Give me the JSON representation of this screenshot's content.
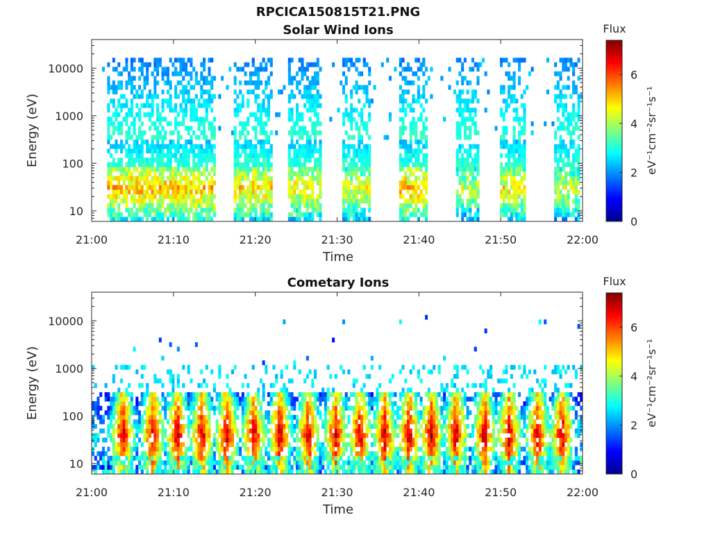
{
  "figure": {
    "title": "RPCICA150815T21.PNG"
  },
  "colors": {
    "colormap": "jet",
    "axis": "#262626",
    "background": "#ffffff"
  },
  "chart_data": [
    {
      "type": "heatmap",
      "title": "Solar Wind Ions",
      "xlabel": "Time",
      "ylabel": "Energy (eV)",
      "xticks": [
        "21:00",
        "21:10",
        "21:20",
        "21:30",
        "21:40",
        "21:50",
        "22:00"
      ],
      "xlim_minutes": [
        0,
        60
      ],
      "yscale": "log",
      "ylim": [
        6,
        40000
      ],
      "yticks": [
        10,
        100,
        1000,
        10000
      ],
      "ytick_labels": [
        "10",
        "100",
        "1000",
        "10000"
      ],
      "colorbar": {
        "label": "Flux",
        "units": "eV⁻¹cm⁻²sr⁻¹s⁻¹",
        "range": [
          0,
          7.4
        ],
        "ticks": [
          0,
          2,
          4,
          6
        ],
        "tick_labels": [
          "0",
          "2",
          "4",
          "6"
        ]
      },
      "time_bands": [
        {
          "start_min": 1.8,
          "end_min": 15.0,
          "peak_energy_eV": 30,
          "peak_flux": 5.8
        },
        {
          "start_min": 17.5,
          "end_min": 22.0,
          "peak_energy_eV": 30,
          "peak_flux": 5.6
        },
        {
          "start_min": 24.0,
          "end_min": 28.0,
          "peak_energy_eV": 30,
          "peak_flux": 5.4
        },
        {
          "start_min": 30.5,
          "end_min": 34.0,
          "peak_energy_eV": 30,
          "peak_flux": 5.2
        },
        {
          "start_min": 37.5,
          "end_min": 41.0,
          "peak_energy_eV": 30,
          "peak_flux": 5.8
        },
        {
          "start_min": 44.5,
          "end_min": 47.5,
          "peak_energy_eV": 30,
          "peak_flux": 5.0
        },
        {
          "start_min": 50.0,
          "end_min": 53.0,
          "peak_energy_eV": 30,
          "peak_flux": 5.4
        },
        {
          "start_min": 56.5,
          "end_min": 59.8,
          "peak_energy_eV": 30,
          "peak_flux": 5.0
        }
      ],
      "high_energy_flux_range": [
        1.5,
        3.2
      ],
      "low_energy_flux_range": [
        3.0,
        5.8
      ]
    },
    {
      "type": "heatmap",
      "title": "Cometary Ions",
      "xlabel": "Time",
      "ylabel": "Energy (eV)",
      "xticks": [
        "21:00",
        "21:10",
        "21:20",
        "21:30",
        "21:40",
        "21:50",
        "22:00"
      ],
      "xlim_minutes": [
        0,
        60
      ],
      "yscale": "log",
      "ylim": [
        6,
        40000
      ],
      "yticks": [
        10,
        100,
        1000,
        10000
      ],
      "ytick_labels": [
        "10",
        "100",
        "1000",
        "10000"
      ],
      "colorbar": {
        "label": "Flux",
        "units": "eV⁻¹cm⁻²sr⁻¹s⁻¹",
        "range": [
          0,
          7.4
        ],
        "ticks": [
          0,
          2,
          4,
          6
        ],
        "tick_labels": [
          "0",
          "2",
          "4",
          "6"
        ]
      },
      "burst_centers_min": [
        3.8,
        7.5,
        10.5,
        13.5,
        16.5,
        19.8,
        23.0,
        26.5,
        29.8,
        32.8,
        35.8,
        38.8,
        41.5,
        44.5,
        48.0,
        51.0,
        54.5,
        57.5
      ],
      "peak_energy_eV": 40,
      "peak_flux": 7.0,
      "sparse_high_energy_flux_range": [
        1.0,
        3.0
      ]
    }
  ]
}
